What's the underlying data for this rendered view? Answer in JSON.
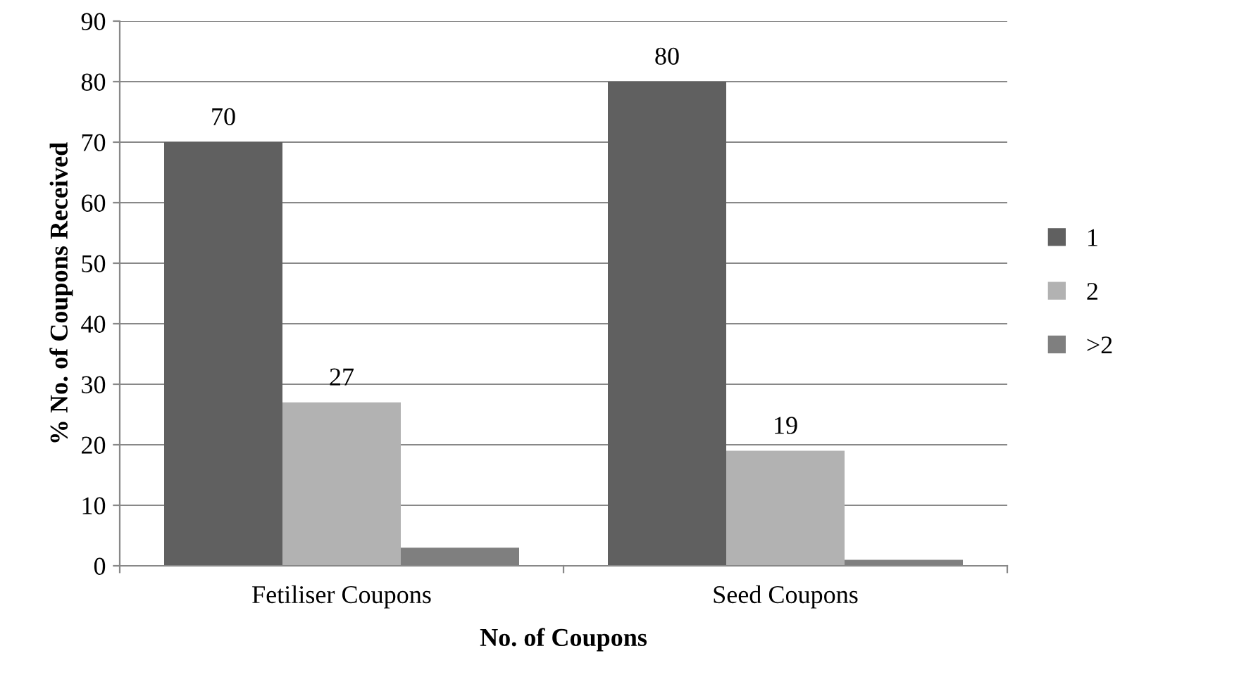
{
  "chart_data": {
    "type": "bar",
    "xlabel": "No. of Coupons",
    "ylabel": "% No. of Coupons Received",
    "categories": [
      "Fetiliser Coupons",
      "Seed Coupons"
    ],
    "series": [
      {
        "name": "1",
        "color": "#606060",
        "values": [
          70,
          80
        ],
        "value_labels": [
          "70",
          "80"
        ]
      },
      {
        "name": "2",
        "color": "#b2b2b2",
        "values": [
          27,
          19
        ],
        "value_labels": [
          "27",
          "19"
        ]
      },
      {
        "name": ">2",
        "color": "#7f7f7f",
        "values": [
          3,
          1
        ]
      }
    ],
    "ylim": [
      0,
      90
    ],
    "yticks": [
      0,
      10,
      20,
      30,
      40,
      50,
      60,
      70,
      80,
      90
    ],
    "grid": "y",
    "legend": "right"
  }
}
